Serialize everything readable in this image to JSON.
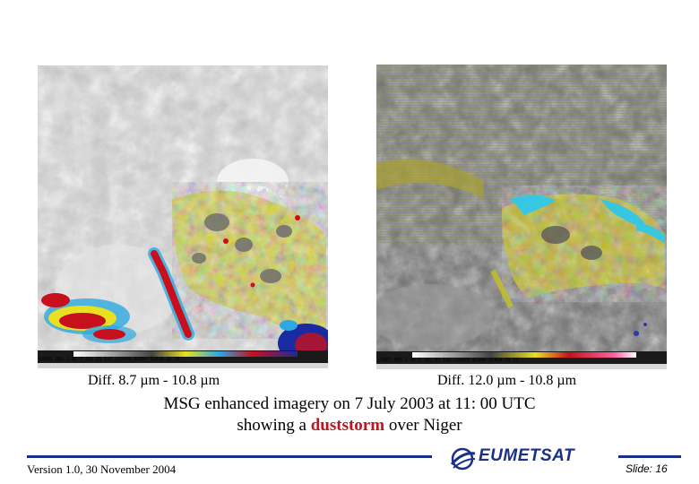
{
  "panels": {
    "left": {
      "caption": "Diff. 8.7 µm - 10.8 µm",
      "colorbar_text": "CODE1 HDS 1   01  7 JUL 03 120 110006 01004 02824 20 23"
    },
    "right": {
      "caption": "Diff. 12.0 µm - 10.8 µm",
      "colorbar_text": "CODE1 HDS 1   01  7 JUL 03 120 110006 01004 02824 20 23"
    }
  },
  "title": {
    "line1": "MSG enhanced imagery on 7 July 2003 at 11: 00 UTC",
    "line2_prefix": "showing a ",
    "line2_highlight": "duststorm",
    "line2_suffix": " over Niger"
  },
  "footer": {
    "version": "Version 1.0, 30 November 2004",
    "logo_text": "EUMETSAT",
    "slide": "Slide: 16"
  },
  "colors": {
    "highlight": "#c0141c",
    "rule": "#1a2f8c",
    "dust_yellow": "#e8e020",
    "cyan": "#30c8e8"
  }
}
